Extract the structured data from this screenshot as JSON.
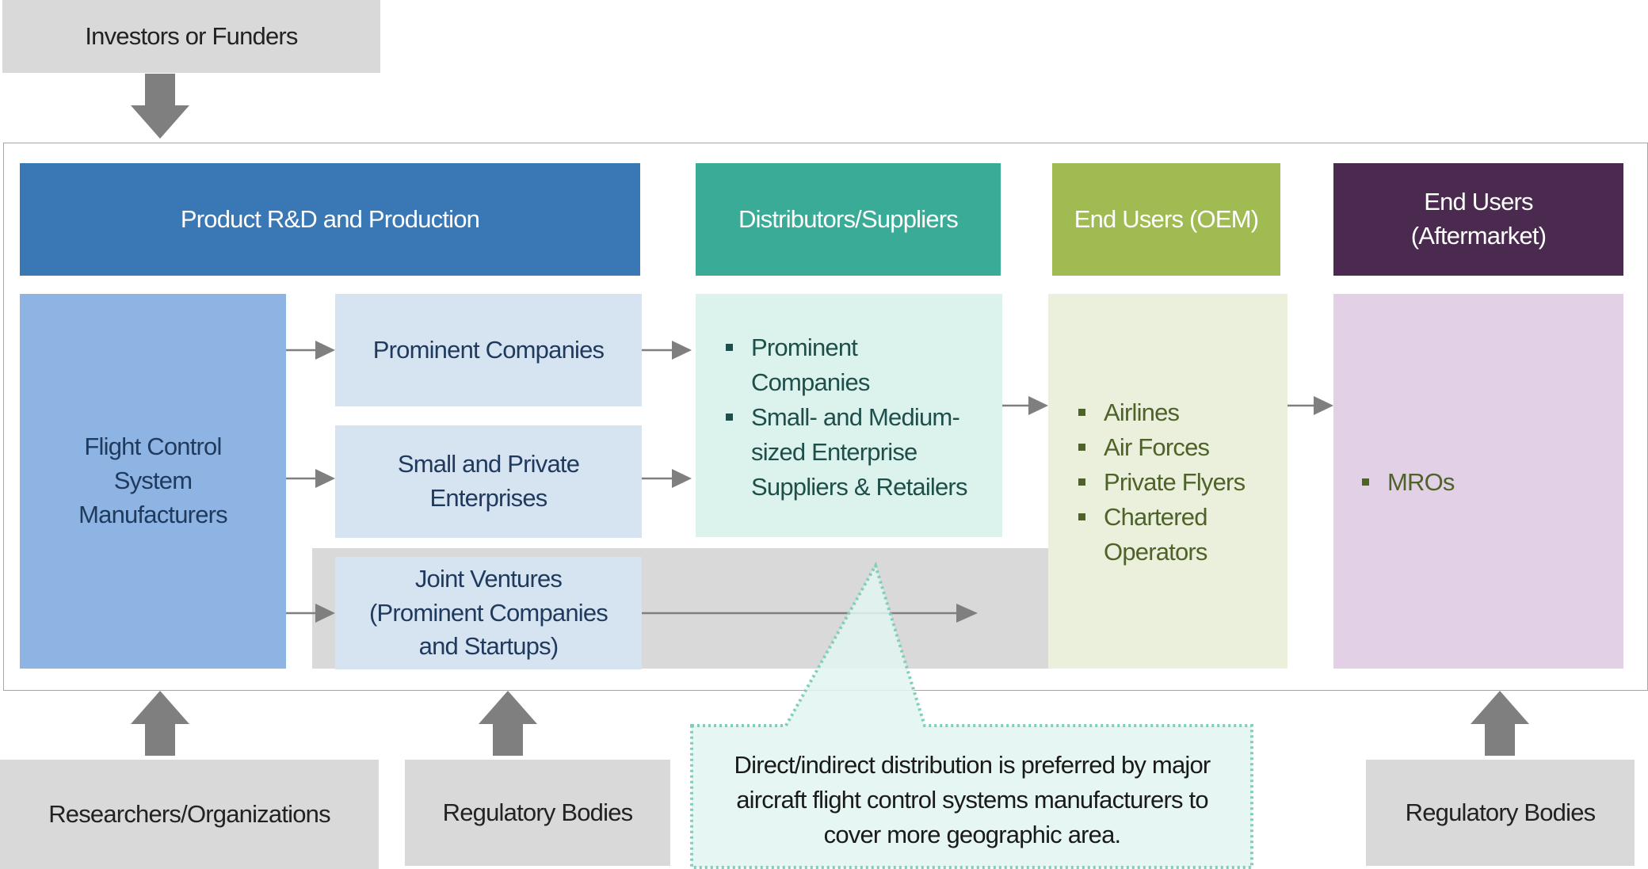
{
  "top": {
    "investors": "Investors or Funders"
  },
  "headers": {
    "rnd": "Product R&D and Production",
    "distributors": "Distributors/Suppliers",
    "oem": "End Users (OEM)",
    "aftermarket_line1": "End Users",
    "aftermarket_line2": "(Aftermarket)"
  },
  "production": {
    "manufacturers": [
      "Flight Control",
      "System",
      "Manufacturers"
    ],
    "prominent": "Prominent Companies",
    "small_private": [
      "Small and Private",
      "Enterprises"
    ],
    "joint_ventures": [
      "Joint Ventures",
      "(Prominent Companies",
      "and Startups)"
    ]
  },
  "distributors": {
    "items": [
      "Prominent Companies",
      "Small- and Medium-sized Enterprise Suppliers & Retailers"
    ]
  },
  "oem": {
    "items": [
      "Airlines",
      "Air Forces",
      "Private Flyers",
      "Chartered Operators"
    ]
  },
  "aftermarket": {
    "items": [
      "MROs"
    ]
  },
  "bottom": {
    "researchers": "Researchers/Organizations",
    "regulatory_left": "Regulatory Bodies",
    "regulatory_right": "Regulatory Bodies"
  },
  "callout": {
    "text": "Direct/indirect distribution is preferred by major aircraft flight control systems manufacturers to cover more geographic area."
  },
  "colors": {
    "rnd": "#3a78b5",
    "distributors": "#3aab96",
    "oem": "#9fbb52",
    "aftermarket": "#4b2a4f",
    "manufacturers": "#8eb4e3",
    "sub_boxes": "#d6e3f1",
    "dist_body": "#dcf2ed",
    "oem_body": "#ebf0dd",
    "after_body": "#e1d0e6",
    "arrow": "#7f7f7f",
    "callout_border": "#7fcfbb"
  }
}
